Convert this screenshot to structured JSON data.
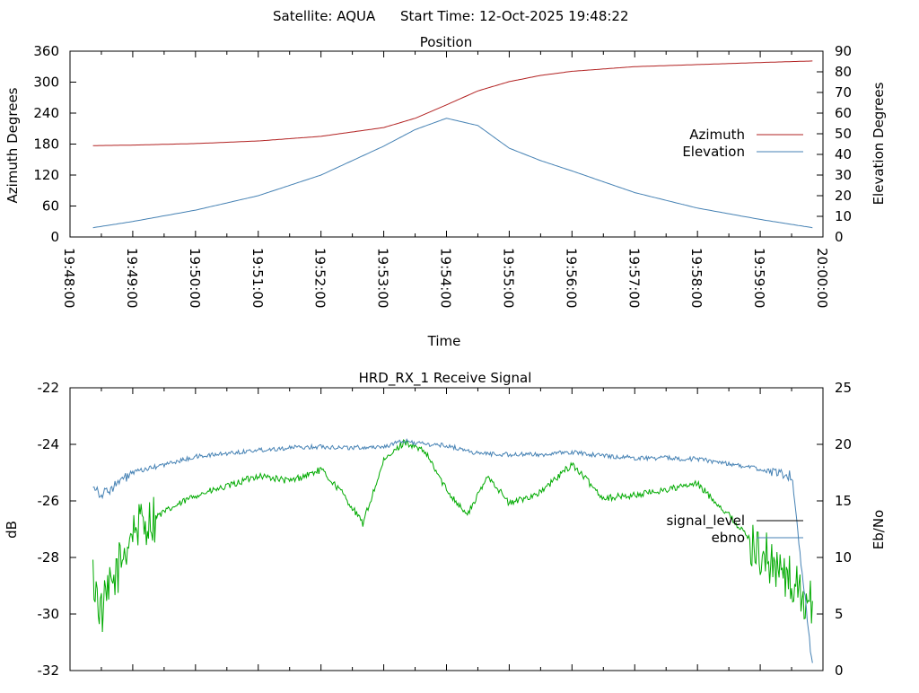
{
  "header": {
    "satellite": "Satellite: AQUA",
    "start_time": "Start Time: 12-Oct-2025 19:48:22"
  },
  "chart_data": [
    {
      "type": "line",
      "title": "Position",
      "xlabel": "Time",
      "ylabel": "Azimuth Degrees",
      "y2label": "Elevation Degrees",
      "xlim": [
        "19:48:00",
        "20:00:00"
      ],
      "xticks": [
        "19:48:00",
        "19:49:00",
        "19:50:00",
        "19:51:00",
        "19:52:00",
        "19:53:00",
        "19:54:00",
        "19:55:00",
        "19:56:00",
        "19:57:00",
        "19:58:00",
        "19:59:00",
        "20:00:00"
      ],
      "ylim": [
        0,
        360
      ],
      "yticks": [
        "0",
        "60",
        "120",
        "180",
        "240",
        "300",
        "360"
      ],
      "y2lim": [
        0,
        90
      ],
      "y2ticks": [
        "0",
        "10",
        "20",
        "30",
        "40",
        "50",
        "60",
        "70",
        "80",
        "90"
      ],
      "legend_position": "right",
      "series": [
        {
          "name": "Azimuth",
          "axis": "left",
          "color": "#b22222",
          "x": [
            "19:48:22",
            "19:49:00",
            "19:50:00",
            "19:51:00",
            "19:52:00",
            "19:53:00",
            "19:53:30",
            "19:54:00",
            "19:54:30",
            "19:55:00",
            "19:55:30",
            "19:56:00",
            "19:57:00",
            "19:58:00",
            "19:59:00",
            "19:59:50"
          ],
          "y": [
            177,
            178,
            181,
            186,
            195,
            212,
            230,
            256,
            283,
            301,
            313,
            321,
            330,
            334,
            338,
            341
          ]
        },
        {
          "name": "Elevation",
          "axis": "right",
          "color": "#4682b4",
          "x": [
            "19:48:22",
            "19:49:00",
            "19:50:00",
            "19:51:00",
            "19:52:00",
            "19:53:00",
            "19:53:30",
            "19:54:00",
            "19:54:30",
            "19:55:00",
            "19:55:30",
            "19:56:00",
            "19:57:00",
            "19:58:00",
            "19:59:00",
            "19:59:50"
          ],
          "y": [
            4.5,
            7.5,
            13,
            20,
            30,
            44,
            52,
            57.5,
            54,
            43,
            37,
            32,
            21.5,
            14,
            8.5,
            4.5
          ]
        }
      ]
    },
    {
      "type": "line",
      "title": "HRD_RX_1 Receive Signal",
      "ylabel": "dB",
      "y2label": "Eb/No",
      "xlim": [
        "19:48:00",
        "20:00:00"
      ],
      "ylim": [
        -32,
        -22
      ],
      "yticks": [
        "-32",
        "-30",
        "-28",
        "-26",
        "-24",
        "-22"
      ],
      "y2lim": [
        0,
        25
      ],
      "y2ticks": [
        "0",
        "5",
        "10",
        "15",
        "20",
        "25"
      ],
      "legend_position": "right",
      "series": [
        {
          "name": "signal_level",
          "axis": "left",
          "color": "#00aa00",
          "legend_color": "#000000",
          "x": [
            "19:48:22",
            "19:48:30",
            "19:49:00",
            "19:49:30",
            "19:50:00",
            "19:50:30",
            "19:51:00",
            "19:51:30",
            "19:52:00",
            "19:52:20",
            "19:52:40",
            "19:53:00",
            "19:53:20",
            "19:53:40",
            "19:54:00",
            "19:54:20",
            "19:54:40",
            "19:55:00",
            "19:55:30",
            "19:56:00",
            "19:56:30",
            "19:57:00",
            "19:57:30",
            "19:58:00",
            "19:58:30",
            "19:59:00",
            "19:59:30",
            "19:59:50"
          ],
          "y": [
            -28.7,
            -30.0,
            -27.0,
            -26.4,
            -25.8,
            -25.5,
            -25.1,
            -25.3,
            -24.9,
            -25.7,
            -26.8,
            -24.6,
            -23.9,
            -24.3,
            -25.6,
            -26.5,
            -25.1,
            -26.1,
            -25.7,
            -24.7,
            -25.9,
            -25.8,
            -25.6,
            -25.4,
            -26.5,
            -27.8,
            -28.9,
            -29.8
          ]
        },
        {
          "name": "ebno",
          "axis": "right",
          "color": "#4682b4",
          "x": [
            "19:48:22",
            "19:48:30",
            "19:49:00",
            "19:49:30",
            "19:50:00",
            "19:50:30",
            "19:51:00",
            "19:51:30",
            "19:52:00",
            "19:52:30",
            "19:53:00",
            "19:53:20",
            "19:53:40",
            "19:54:00",
            "19:54:30",
            "19:55:00",
            "19:55:30",
            "19:56:00",
            "19:56:30",
            "19:57:00",
            "19:57:30",
            "19:58:00",
            "19:58:30",
            "19:59:00",
            "19:59:30",
            "19:59:50"
          ],
          "y": [
            16.5,
            15.5,
            17.5,
            18.2,
            18.9,
            19.2,
            19.5,
            19.7,
            19.8,
            19.7,
            19.8,
            20.3,
            20.0,
            19.9,
            19.2,
            19.1,
            19.1,
            19.3,
            19.0,
            18.8,
            18.8,
            18.7,
            18.3,
            17.8,
            17.2,
            0.3
          ]
        }
      ]
    }
  ]
}
